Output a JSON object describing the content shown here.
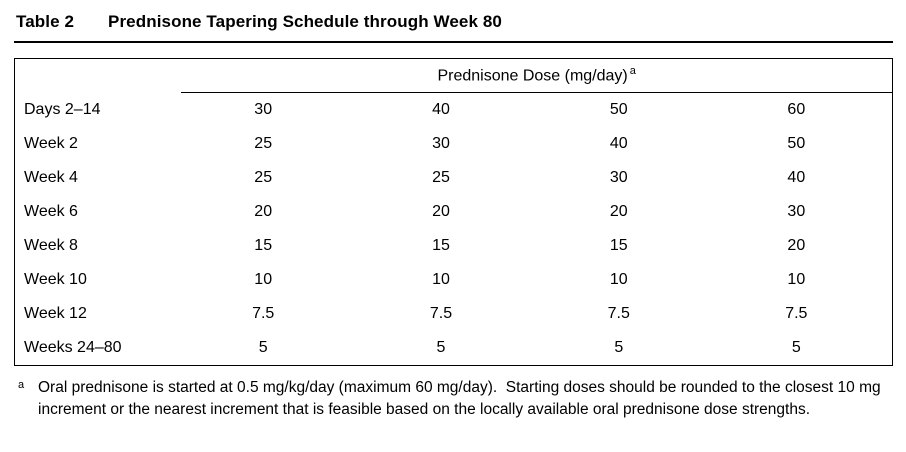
{
  "title": {
    "label": "Table 2",
    "caption": "Prednisone Tapering Schedule through Week 80"
  },
  "table": {
    "header": "Prednisone Dose (mg/day)",
    "header_marker": "a",
    "rows": [
      {
        "label": "Days 2–14",
        "values": [
          "30",
          "40",
          "50",
          "60"
        ]
      },
      {
        "label": "Week 2",
        "values": [
          "25",
          "30",
          "40",
          "50"
        ]
      },
      {
        "label": "Week 4",
        "values": [
          "25",
          "25",
          "30",
          "40"
        ]
      },
      {
        "label": "Week 6",
        "values": [
          "20",
          "20",
          "20",
          "30"
        ]
      },
      {
        "label": "Week 8",
        "values": [
          "15",
          "15",
          "15",
          "20"
        ]
      },
      {
        "label": "Week 10",
        "values": [
          "10",
          "10",
          "10",
          "10"
        ]
      },
      {
        "label": "Week 12",
        "values": [
          "7.5",
          "7.5",
          "7.5",
          "7.5"
        ]
      },
      {
        "label": "Weeks 24–80",
        "values": [
          "5",
          "5",
          "5",
          "5"
        ]
      }
    ]
  },
  "footnote": {
    "marker": "a",
    "text": "Oral prednisone is started at 0.5 mg/kg/day (maximum 60 mg/day).  Starting doses should be rounded to the closest 10 mg increment or the nearest increment that is feasible based on the locally available oral prednisone dose strengths."
  },
  "colors": {
    "text": "#000000",
    "background": "#ffffff",
    "border": "#000000"
  }
}
